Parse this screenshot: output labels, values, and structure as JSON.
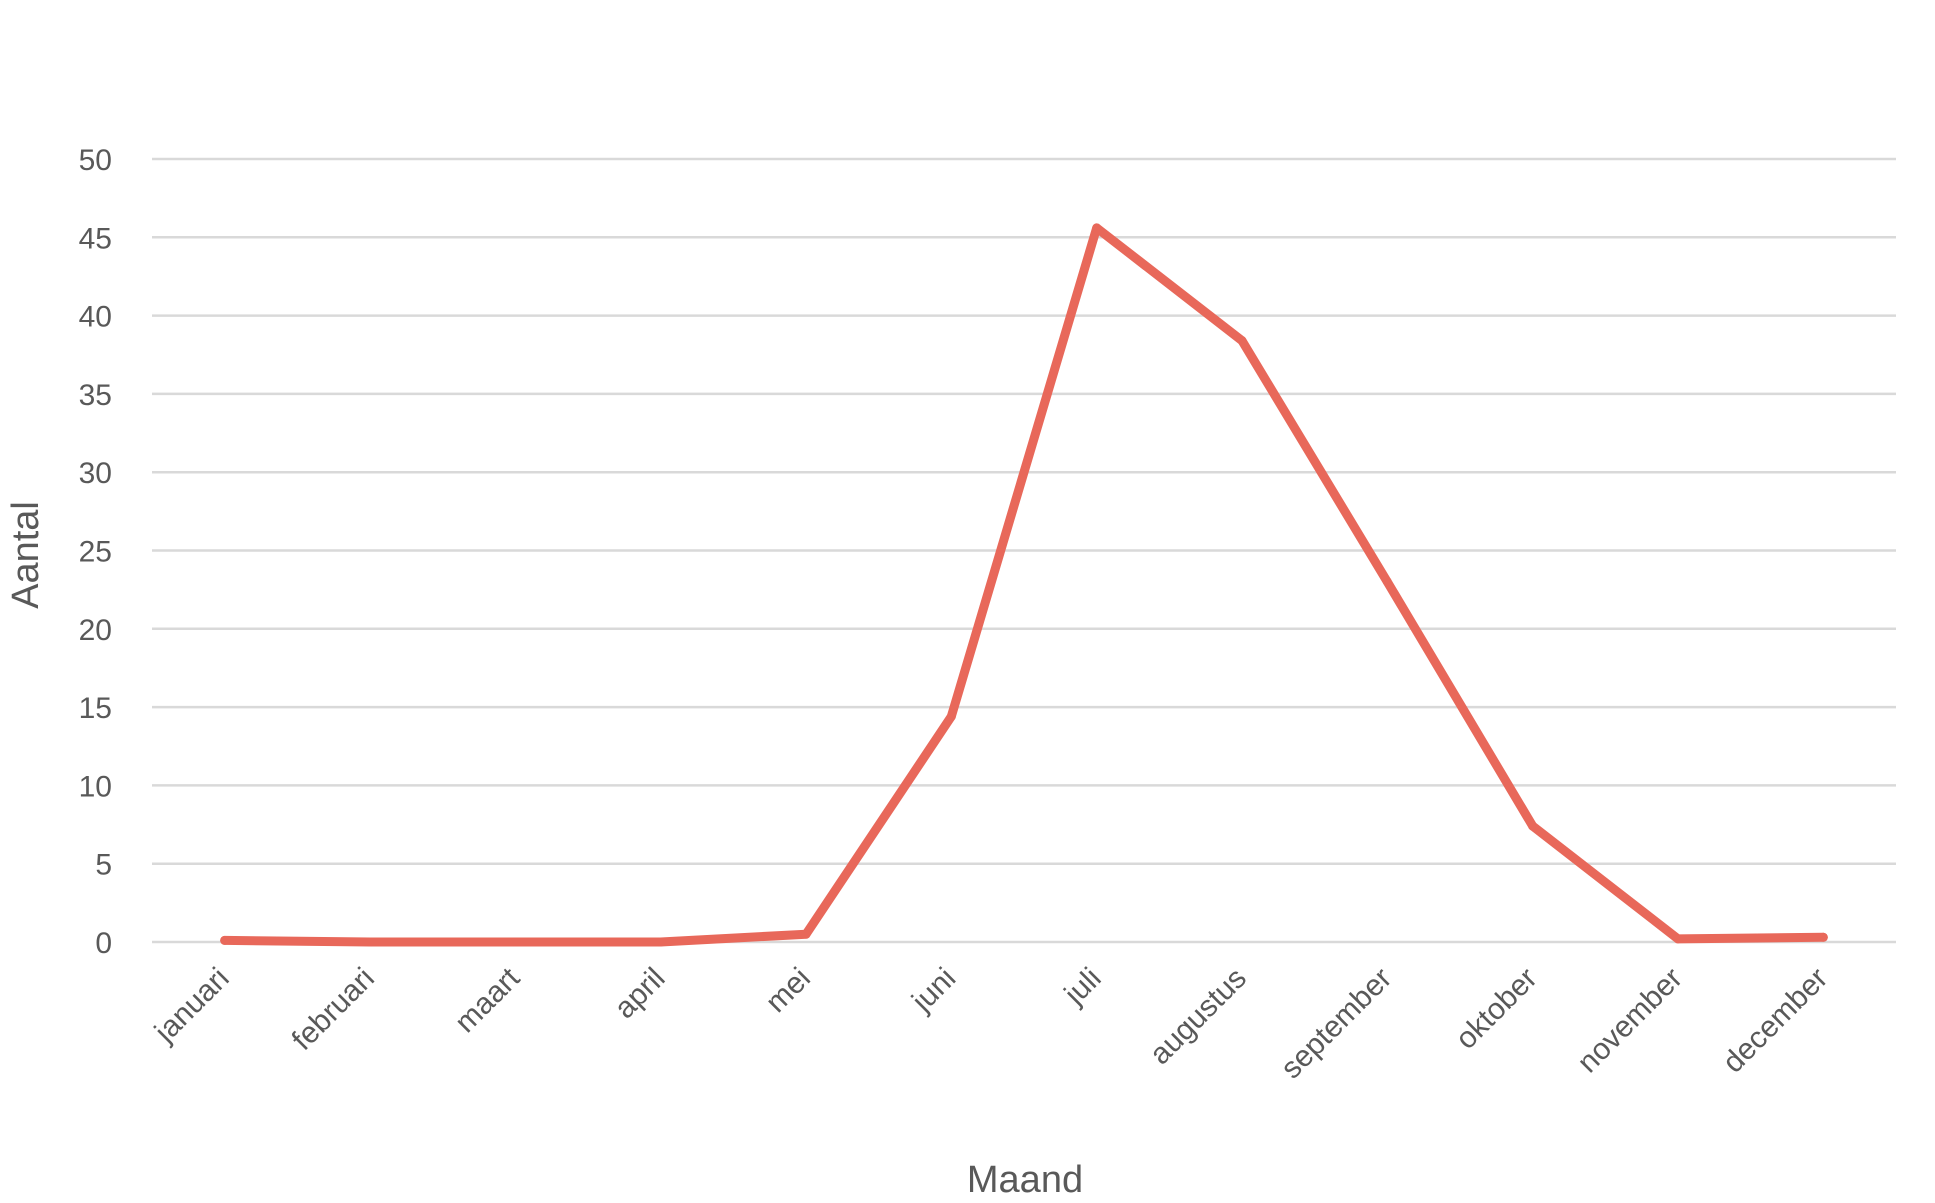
{
  "chart_data": {
    "type": "line",
    "title": "",
    "xlabel": "Maand",
    "ylabel": "Aantal",
    "ylim": [
      0,
      50
    ],
    "yticks": [
      "0",
      "5",
      "10",
      "15",
      "20",
      "25",
      "30",
      "35",
      "40",
      "45",
      "50"
    ],
    "grid": true,
    "legend": "none",
    "categories": [
      "januari",
      "februari",
      "maart",
      "april",
      "mei",
      "juni",
      "juli",
      "augustus",
      "september",
      "oktober",
      "november",
      "december"
    ],
    "series": [
      {
        "color": "#e8685a",
        "values": [
          0.1,
          0,
          0,
          0,
          0.5,
          14.4,
          45.6,
          38.4,
          23,
          7.4,
          0.2,
          0.3
        ]
      }
    ]
  }
}
